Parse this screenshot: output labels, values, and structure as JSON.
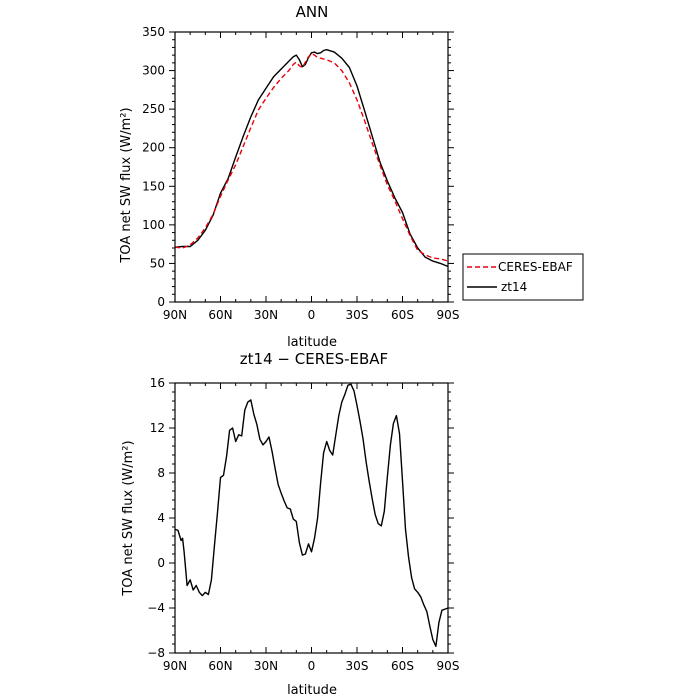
{
  "chart_data": [
    {
      "type": "line",
      "title": "ANN",
      "xlabel": "latitude",
      "ylabel": "TOA net SW flux (W/m²)",
      "x_ticks": [
        {
          "value": 90,
          "label": "90N"
        },
        {
          "value": 60,
          "label": "60N"
        },
        {
          "value": 30,
          "label": "30N"
        },
        {
          "value": 0,
          "label": "0"
        },
        {
          "value": -30,
          "label": "30S"
        },
        {
          "value": -60,
          "label": "60S"
        },
        {
          "value": -90,
          "label": "90S"
        }
      ],
      "xlim": [
        90,
        -90
      ],
      "ylim": [
        0,
        350
      ],
      "y_ticks": [
        0,
        50,
        100,
        150,
        200,
        250,
        300,
        350
      ],
      "legend_position": "right",
      "series": [
        {
          "name": "CERES-EBAF",
          "color": "#e8000b",
          "dash": "dashed",
          "x": [
            90,
            85,
            80,
            75,
            70,
            65,
            60,
            55,
            50,
            45,
            40,
            35,
            30,
            25,
            20,
            15,
            12,
            10,
            8,
            6,
            4,
            2,
            0,
            -2,
            -4,
            -6,
            -8,
            -10,
            -15,
            -20,
            -25,
            -30,
            -35,
            -40,
            -45,
            -50,
            -55,
            -60,
            -65,
            -70,
            -75,
            -80,
            -85,
            -90
          ],
          "y": [
            71,
            70,
            74,
            83,
            96,
            113,
            137,
            158,
            178,
            202,
            226,
            249,
            264,
            278,
            290,
            300,
            308,
            311,
            306,
            304,
            311,
            318,
            322,
            320,
            317,
            316,
            315,
            314,
            310,
            300,
            284,
            262,
            235,
            206,
            178,
            152,
            131,
            108,
            86,
            67,
            61,
            57,
            56,
            53
          ]
        },
        {
          "name": "zt14",
          "color": "#000000",
          "dash": "solid",
          "x": [
            90,
            85,
            80,
            75,
            70,
            65,
            60,
            55,
            50,
            45,
            40,
            35,
            30,
            25,
            20,
            15,
            12,
            10,
            8,
            6,
            4,
            2,
            0,
            -2,
            -4,
            -6,
            -8,
            -10,
            -15,
            -20,
            -25,
            -30,
            -35,
            -40,
            -45,
            -50,
            -55,
            -60,
            -65,
            -70,
            -75,
            -80,
            -85,
            -90
          ],
          "y": [
            71,
            72,
            72,
            80,
            93,
            112,
            141,
            160,
            188,
            215,
            240,
            262,
            277,
            292,
            302,
            312,
            318,
            320,
            314,
            305,
            308,
            317,
            323,
            324,
            322,
            323,
            326,
            327,
            324,
            316,
            304,
            280,
            248,
            215,
            182,
            157,
            135,
            116,
            88,
            70,
            58,
            53,
            50,
            46
          ]
        }
      ]
    },
    {
      "type": "line",
      "title": "zt14 − CERES-EBAF",
      "xlabel": "latitude",
      "ylabel": "TOA net SW flux (W/m²)",
      "x_ticks": [
        {
          "value": 90,
          "label": "90N"
        },
        {
          "value": 60,
          "label": "60N"
        },
        {
          "value": 30,
          "label": "30N"
        },
        {
          "value": 0,
          "label": "0"
        },
        {
          "value": -30,
          "label": "30S"
        },
        {
          "value": -60,
          "label": "60S"
        },
        {
          "value": -90,
          "label": "90S"
        }
      ],
      "xlim": [
        90,
        -90
      ],
      "ylim": [
        -8,
        16
      ],
      "y_ticks": [
        -8,
        -4,
        0,
        4,
        8,
        12,
        16
      ],
      "y_tick_labels": [
        "−8",
        "−4",
        "0",
        "4",
        "8",
        "12",
        "16"
      ],
      "series": [
        {
          "color": "#000000",
          "dash": "solid",
          "x": [
            90,
            88,
            86,
            85,
            84,
            82,
            80,
            78,
            76,
            74,
            72,
            70,
            68,
            66,
            64,
            62,
            60,
            58,
            56,
            54,
            52,
            50,
            48,
            46,
            44,
            42,
            40,
            38,
            36,
            34,
            32,
            30,
            28,
            26,
            24,
            22,
            20,
            18,
            16,
            14,
            12,
            10,
            8,
            6,
            4,
            2,
            0,
            -2,
            -4,
            -6,
            -8,
            -10,
            -12,
            -14,
            -16,
            -18,
            -20,
            -22,
            -24,
            -26,
            -28,
            -30,
            -32,
            -34,
            -36,
            -38,
            -40,
            -42,
            -44,
            -46,
            -48,
            -50,
            -52,
            -54,
            -56,
            -58,
            -60,
            -62,
            -64,
            -66,
            -68,
            -70,
            -72,
            -74,
            -76,
            -78,
            -80,
            -82,
            -84,
            -86,
            -88,
            -90
          ],
          "y": [
            3.0,
            2.9,
            2.0,
            2.2,
            1.0,
            -2.0,
            -1.5,
            -2.4,
            -2.0,
            -2.6,
            -2.9,
            -2.6,
            -2.8,
            -1.5,
            1.5,
            4.5,
            7.6,
            7.8,
            9.5,
            11.8,
            12.0,
            10.8,
            11.4,
            11.3,
            13.6,
            14.3,
            14.5,
            13.2,
            12.3,
            11.0,
            10.5,
            10.8,
            11.2,
            9.9,
            8.4,
            7.0,
            6.2,
            5.5,
            4.9,
            4.8,
            3.9,
            3.7,
            1.8,
            0.7,
            0.8,
            1.7,
            1.0,
            2.2,
            4.0,
            7.1,
            9.8,
            10.8,
            10.0,
            9.6,
            11.4,
            13.1,
            14.3,
            15.0,
            15.8,
            15.9,
            15.3,
            14.0,
            12.6,
            11.0,
            9.0,
            7.3,
            5.7,
            4.3,
            3.5,
            3.3,
            4.6,
            7.6,
            10.5,
            12.4,
            13.1,
            11.5,
            7.3,
            3.0,
            0.5,
            -1.3,
            -2.3,
            -2.6,
            -3.0,
            -3.7,
            -4.3,
            -5.6,
            -6.8,
            -7.4,
            -5.3,
            -4.2,
            -4.1,
            -4.0
          ]
        }
      ]
    }
  ]
}
